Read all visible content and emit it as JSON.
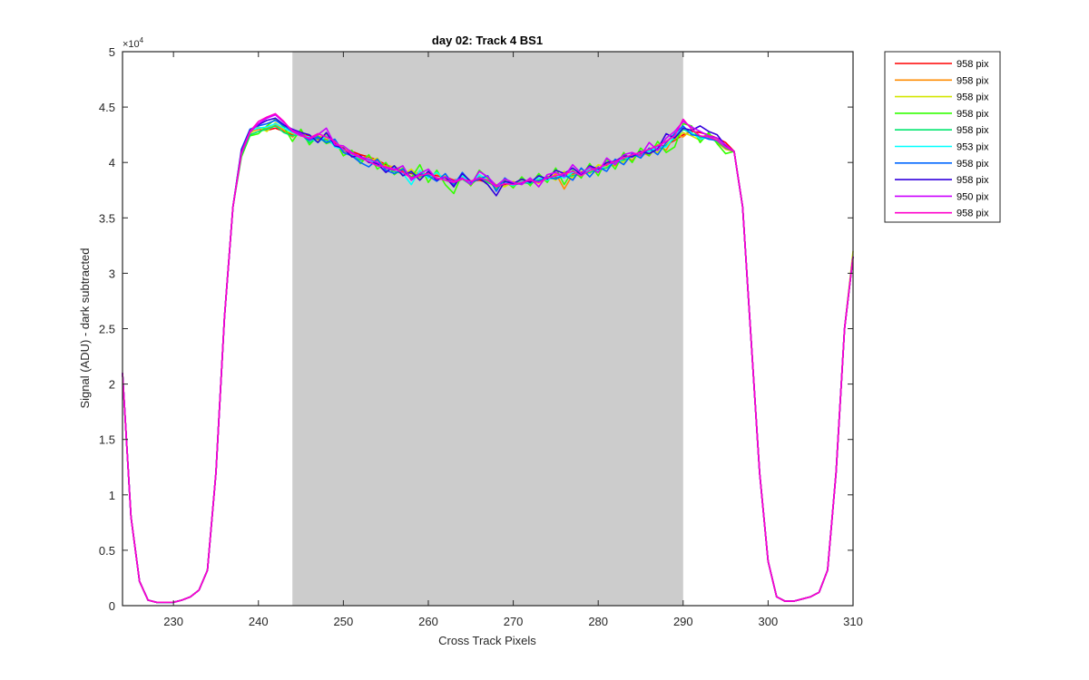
{
  "chart_data": {
    "type": "line",
    "title": "day 02: Track 4  BS1",
    "xlabel": "Cross Track Pixels",
    "ylabel": "Signal (ADU) - dark subtracted",
    "y_multiplier_label": "×10",
    "y_multiplier_exp": "4",
    "xlim": [
      224,
      310
    ],
    "ylim": [
      0,
      5
    ],
    "x_ticks": [
      230,
      240,
      250,
      260,
      270,
      280,
      290,
      300,
      310
    ],
    "y_ticks": [
      0,
      0.5,
      1,
      1.5,
      2,
      2.5,
      3,
      3.5,
      4,
      4.5,
      5
    ],
    "shaded_region": {
      "x_start": 244,
      "x_end": 290,
      "color": "#cccccc"
    },
    "grid": false,
    "legend_position": "outside-top-right",
    "x": [
      224,
      225,
      226,
      227,
      228,
      229,
      230,
      231,
      232,
      233,
      234,
      235,
      236,
      237,
      238,
      239,
      240,
      241,
      242,
      243,
      244,
      245,
      246,
      247,
      248,
      249,
      250,
      251,
      252,
      253,
      254,
      255,
      256,
      257,
      258,
      259,
      260,
      261,
      262,
      263,
      264,
      265,
      266,
      267,
      268,
      269,
      270,
      271,
      272,
      273,
      274,
      275,
      276,
      277,
      278,
      279,
      280,
      281,
      282,
      283,
      284,
      285,
      286,
      287,
      288,
      289,
      290,
      291,
      292,
      293,
      294,
      295,
      296,
      297,
      298,
      299,
      300,
      301,
      302,
      303,
      304,
      305,
      306,
      307,
      308,
      309,
      310
    ],
    "series": [
      {
        "name": "958 pix",
        "color": "#ff0000",
        "values": [
          2.1,
          0.8,
          0.22,
          0.05,
          0.03,
          0.03,
          0.03,
          0.05,
          0.08,
          0.14,
          0.32,
          1.2,
          2.6,
          3.6,
          4.1,
          4.28,
          4.3,
          4.29,
          4.31,
          4.28,
          4.25,
          4.27,
          4.24,
          4.21,
          4.25,
          4.17,
          4.13,
          4.1,
          4.07,
          4.05,
          4.02,
          3.98,
          3.95,
          3.92,
          3.9,
          3.89,
          3.9,
          3.88,
          3.87,
          3.84,
          3.86,
          3.83,
          3.84,
          3.82,
          3.79,
          3.8,
          3.81,
          3.82,
          3.83,
          3.84,
          3.86,
          3.87,
          3.88,
          3.9,
          3.91,
          3.93,
          3.95,
          3.97,
          4.0,
          4.03,
          4.05,
          4.08,
          4.1,
          4.13,
          4.16,
          4.2,
          4.25,
          4.28,
          4.27,
          4.25,
          4.22,
          4.18,
          4.1,
          3.6,
          2.4,
          1.2,
          0.4,
          0.08,
          0.04,
          0.04,
          0.06,
          0.08,
          0.12,
          0.32,
          1.2,
          2.5,
          3.15
        ]
      },
      {
        "name": "958 pix",
        "color": "#ff8c00",
        "values": [
          2.1,
          0.8,
          0.22,
          0.05,
          0.03,
          0.03,
          0.03,
          0.05,
          0.08,
          0.14,
          0.32,
          1.2,
          2.6,
          3.6,
          4.08,
          4.27,
          4.3,
          4.31,
          4.34,
          4.29,
          4.23,
          4.29,
          4.2,
          4.24,
          4.21,
          4.19,
          4.1,
          4.09,
          4.03,
          4.06,
          3.99,
          3.97,
          3.96,
          3.93,
          3.87,
          3.92,
          3.87,
          3.9,
          3.85,
          3.82,
          3.89,
          3.8,
          3.86,
          3.83,
          3.77,
          3.82,
          3.78,
          3.84,
          3.8,
          3.86,
          3.83,
          3.9,
          3.76,
          3.89,
          3.88,
          3.95,
          3.92,
          3.99,
          3.97,
          4.05,
          4.02,
          4.1,
          4.06,
          4.16,
          4.11,
          4.25,
          4.23,
          4.3,
          4.22,
          4.26,
          4.18,
          4.12,
          4.1,
          3.6,
          2.4,
          1.2,
          0.4,
          0.08,
          0.04,
          0.04,
          0.06,
          0.08,
          0.12,
          0.32,
          1.2,
          2.5,
          3.15
        ]
      },
      {
        "name": "958 pix",
        "color": "#d4e600",
        "values": [
          2.1,
          0.8,
          0.22,
          0.05,
          0.03,
          0.03,
          0.03,
          0.05,
          0.08,
          0.14,
          0.32,
          1.2,
          2.6,
          3.6,
          4.09,
          4.26,
          4.32,
          4.28,
          4.36,
          4.3,
          4.26,
          4.25,
          4.22,
          4.19,
          4.26,
          4.15,
          4.14,
          4.07,
          4.05,
          4.01,
          4.04,
          3.94,
          3.97,
          3.89,
          3.94,
          3.86,
          3.91,
          3.85,
          3.88,
          3.8,
          3.87,
          3.79,
          3.88,
          3.85,
          3.8,
          3.78,
          3.83,
          3.8,
          3.85,
          3.81,
          3.88,
          3.84,
          3.92,
          3.86,
          3.94,
          3.9,
          3.98,
          3.96,
          4.02,
          4.0,
          4.07,
          4.05,
          4.12,
          4.09,
          4.17,
          4.21,
          4.27,
          4.24,
          4.2,
          4.24,
          4.21,
          4.14,
          4.1,
          3.6,
          2.4,
          1.2,
          0.4,
          0.08,
          0.04,
          0.04,
          0.06,
          0.08,
          0.12,
          0.32,
          1.2,
          2.5,
          3.2
        ]
      },
      {
        "name": "958 pix",
        "color": "#33ff00",
        "values": [
          2.1,
          0.8,
          0.22,
          0.05,
          0.03,
          0.03,
          0.03,
          0.05,
          0.08,
          0.14,
          0.32,
          1.2,
          2.6,
          3.6,
          4.05,
          4.24,
          4.26,
          4.33,
          4.39,
          4.32,
          4.19,
          4.3,
          4.16,
          4.24,
          4.17,
          4.2,
          4.06,
          4.11,
          3.99,
          4.07,
          3.94,
          4.0,
          3.89,
          3.95,
          3.86,
          3.98,
          3.82,
          3.93,
          3.8,
          3.72,
          3.9,
          3.79,
          3.93,
          3.86,
          3.76,
          3.84,
          3.77,
          3.87,
          3.79,
          3.9,
          3.82,
          3.95,
          3.8,
          3.93,
          3.86,
          3.99,
          3.88,
          4.03,
          3.94,
          4.09,
          4.0,
          4.13,
          4.06,
          4.19,
          4.09,
          4.14,
          4.35,
          4.33,
          4.18,
          4.27,
          4.17,
          4.08,
          4.1,
          3.6,
          2.4,
          1.2,
          0.4,
          0.08,
          0.04,
          0.04,
          0.06,
          0.08,
          0.12,
          0.32,
          1.2,
          2.5,
          3.15
        ]
      },
      {
        "name": "958 pix",
        "color": "#00e66e",
        "values": [
          2.1,
          0.8,
          0.22,
          0.05,
          0.03,
          0.03,
          0.03,
          0.05,
          0.08,
          0.14,
          0.32,
          1.2,
          2.6,
          3.6,
          4.07,
          4.25,
          4.28,
          4.3,
          4.33,
          4.27,
          4.24,
          4.26,
          4.18,
          4.22,
          4.2,
          4.16,
          4.11,
          4.08,
          4.02,
          4.03,
          3.97,
          3.96,
          3.92,
          3.9,
          3.91,
          3.87,
          3.89,
          3.86,
          3.84,
          3.81,
          3.85,
          3.8,
          3.87,
          3.82,
          3.79,
          3.81,
          3.8,
          3.82,
          3.81,
          3.84,
          3.85,
          3.86,
          3.87,
          3.88,
          3.9,
          3.91,
          3.94,
          3.95,
          4.01,
          4.02,
          4.06,
          4.07,
          4.11,
          4.12,
          4.15,
          4.22,
          4.3,
          4.26,
          4.23,
          4.22,
          4.19,
          4.13,
          4.1,
          3.6,
          2.4,
          1.2,
          0.4,
          0.08,
          0.04,
          0.04,
          0.06,
          0.08,
          0.12,
          0.32,
          1.2,
          2.5,
          3.15
        ]
      },
      {
        "name": "953 pix",
        "color": "#00ffff",
        "values": [
          2.1,
          0.8,
          0.22,
          0.05,
          0.03,
          0.03,
          0.03,
          0.05,
          0.08,
          0.14,
          0.32,
          1.2,
          2.6,
          3.6,
          4.1,
          4.29,
          4.31,
          4.32,
          4.35,
          4.31,
          4.27,
          4.24,
          4.23,
          4.18,
          4.24,
          4.14,
          4.12,
          4.06,
          4.04,
          4.02,
          3.98,
          3.92,
          3.96,
          3.9,
          3.8,
          3.93,
          3.86,
          3.91,
          3.84,
          3.83,
          3.88,
          3.81,
          3.89,
          3.84,
          3.78,
          3.82,
          3.79,
          3.83,
          3.82,
          3.86,
          3.84,
          3.88,
          3.86,
          3.91,
          3.89,
          3.94,
          3.93,
          3.98,
          3.99,
          4.04,
          4.05,
          4.09,
          4.1,
          4.14,
          4.14,
          4.24,
          4.31,
          4.27,
          4.21,
          4.23,
          4.2,
          4.15,
          4.1,
          3.6,
          2.4,
          1.2,
          0.4,
          0.08,
          0.04,
          0.04,
          0.06,
          0.08,
          0.12,
          0.32,
          1.2,
          2.5,
          3.15
        ]
      },
      {
        "name": "958 pix",
        "color": "#0066ff",
        "values": [
          2.1,
          0.8,
          0.22,
          0.05,
          0.03,
          0.03,
          0.03,
          0.05,
          0.08,
          0.14,
          0.32,
          1.2,
          2.6,
          3.6,
          4.12,
          4.3,
          4.33,
          4.35,
          4.38,
          4.33,
          4.28,
          4.25,
          4.2,
          4.23,
          4.18,
          4.21,
          4.09,
          4.06,
          4.0,
          3.96,
          4.03,
          3.93,
          3.9,
          3.94,
          3.86,
          3.9,
          3.88,
          3.83,
          3.9,
          3.79,
          3.91,
          3.82,
          3.85,
          3.88,
          3.74,
          3.86,
          3.8,
          3.81,
          3.84,
          3.83,
          3.87,
          3.85,
          3.89,
          3.84,
          3.95,
          3.87,
          3.96,
          3.92,
          4.03,
          3.98,
          4.08,
          4.04,
          4.13,
          4.07,
          4.18,
          4.26,
          4.33,
          4.25,
          4.24,
          4.21,
          4.2,
          4.14,
          4.1,
          3.6,
          2.4,
          1.2,
          0.4,
          0.08,
          0.04,
          0.04,
          0.06,
          0.08,
          0.12,
          0.32,
          1.2,
          2.5,
          3.15
        ]
      },
      {
        "name": "958 pix",
        "color": "#3300dd",
        "values": [
          2.1,
          0.8,
          0.22,
          0.05,
          0.03,
          0.03,
          0.03,
          0.05,
          0.08,
          0.14,
          0.32,
          1.2,
          2.6,
          3.6,
          4.11,
          4.29,
          4.34,
          4.38,
          4.4,
          4.34,
          4.3,
          4.27,
          4.25,
          4.18,
          4.27,
          4.15,
          4.13,
          4.05,
          4.06,
          4.0,
          3.99,
          3.91,
          3.97,
          3.88,
          3.92,
          3.84,
          3.92,
          3.84,
          3.87,
          3.78,
          3.9,
          3.83,
          3.86,
          3.8,
          3.7,
          3.83,
          3.81,
          3.85,
          3.82,
          3.88,
          3.85,
          3.93,
          3.9,
          3.95,
          3.89,
          3.97,
          3.94,
          4.0,
          4.01,
          4.06,
          4.05,
          4.1,
          4.08,
          4.12,
          4.26,
          4.22,
          4.31,
          4.29,
          4.33,
          4.28,
          4.25,
          4.15,
          4.1,
          3.6,
          2.4,
          1.2,
          0.4,
          0.08,
          0.04,
          0.04,
          0.06,
          0.08,
          0.12,
          0.32,
          1.2,
          2.5,
          3.15
        ]
      },
      {
        "name": "950 pix",
        "color": "#cc00ff",
        "values": [
          2.1,
          0.8,
          0.22,
          0.05,
          0.03,
          0.03,
          0.03,
          0.05,
          0.08,
          0.14,
          0.32,
          1.2,
          2.6,
          3.6,
          4.08,
          4.27,
          4.35,
          4.4,
          4.43,
          4.36,
          4.29,
          4.26,
          4.21,
          4.25,
          4.31,
          4.16,
          4.15,
          4.09,
          4.05,
          4.03,
          4.0,
          3.95,
          3.93,
          3.97,
          3.84,
          3.9,
          3.94,
          3.85,
          3.87,
          3.83,
          3.86,
          3.8,
          3.92,
          3.87,
          3.79,
          3.85,
          3.82,
          3.8,
          3.86,
          3.78,
          3.89,
          3.91,
          3.87,
          3.98,
          3.9,
          3.96,
          3.91,
          4.04,
          3.98,
          4.07,
          4.09,
          4.06,
          4.18,
          4.11,
          4.22,
          4.28,
          4.37,
          4.32,
          4.28,
          4.24,
          4.22,
          4.16,
          4.1,
          3.6,
          2.4,
          1.2,
          0.4,
          0.08,
          0.04,
          0.04,
          0.06,
          0.08,
          0.12,
          0.32,
          1.2,
          2.5,
          3.15
        ]
      },
      {
        "name": "958 pix",
        "color": "#ff00cc",
        "values": [
          2.1,
          0.8,
          0.22,
          0.05,
          0.03,
          0.03,
          0.03,
          0.05,
          0.08,
          0.14,
          0.32,
          1.2,
          2.6,
          3.6,
          4.09,
          4.28,
          4.37,
          4.41,
          4.44,
          4.37,
          4.28,
          4.24,
          4.22,
          4.26,
          4.23,
          4.19,
          4.12,
          4.08,
          4.04,
          4.01,
          3.97,
          3.96,
          3.94,
          3.91,
          3.86,
          3.88,
          3.9,
          3.86,
          3.84,
          3.82,
          3.85,
          3.83,
          3.86,
          3.84,
          3.78,
          3.81,
          3.8,
          3.82,
          3.84,
          3.82,
          3.86,
          3.88,
          3.9,
          3.92,
          3.88,
          3.93,
          3.95,
          3.98,
          4.01,
          4.04,
          4.07,
          4.09,
          4.12,
          4.15,
          4.19,
          4.24,
          4.39,
          4.3,
          4.24,
          4.23,
          4.2,
          4.14,
          4.1,
          3.6,
          2.4,
          1.2,
          0.4,
          0.08,
          0.04,
          0.04,
          0.06,
          0.08,
          0.12,
          0.32,
          1.2,
          2.5,
          3.15
        ]
      }
    ]
  }
}
